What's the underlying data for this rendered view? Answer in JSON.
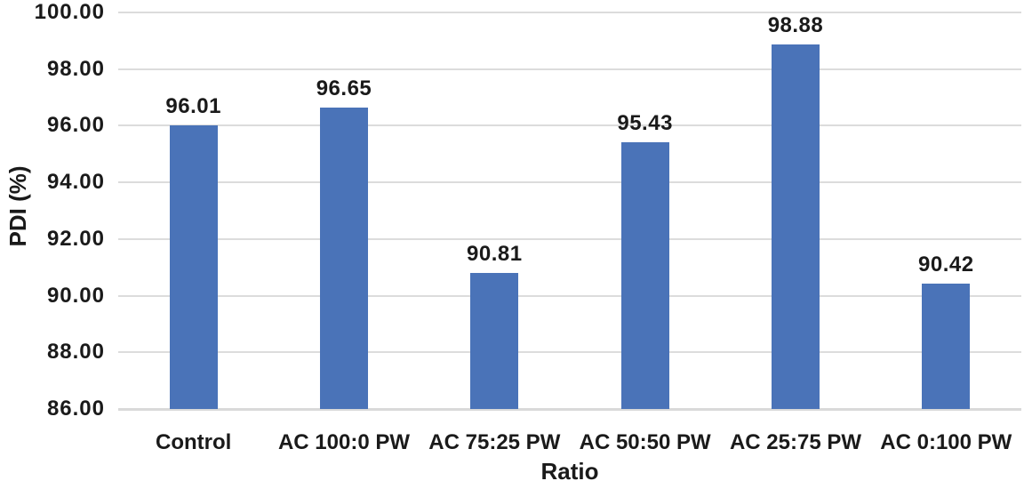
{
  "chart_data": {
    "type": "bar",
    "title": "",
    "xlabel": "Ratio",
    "ylabel": "PDI (%)",
    "categories": [
      "Control",
      "AC 100:0 PW",
      "AC 75:25 PW",
      "AC 50:50 PW",
      "AC 25:75 PW",
      "AC 0:100 PW"
    ],
    "values": [
      96.01,
      96.65,
      90.81,
      95.43,
      98.88,
      90.42
    ],
    "value_labels": [
      "96.01",
      "96.65",
      "90.81",
      "95.43",
      "98.88",
      "90.42"
    ],
    "ylim": [
      86,
      100
    ],
    "ytick_step": 2,
    "yticks": [
      86,
      88,
      90,
      92,
      94,
      96,
      98,
      100
    ],
    "ytick_labels": [
      "86.00",
      "88.00",
      "90.00",
      "92.00",
      "94.00",
      "96.00",
      "98.00",
      "100.00"
    ],
    "grid": "horizontal-only",
    "legend": "none",
    "colors": {
      "bar": "#4a73b8",
      "gridline": "#dcdcdc",
      "axis_line": "#d9d9d9",
      "text": "#1a1a1a"
    }
  }
}
